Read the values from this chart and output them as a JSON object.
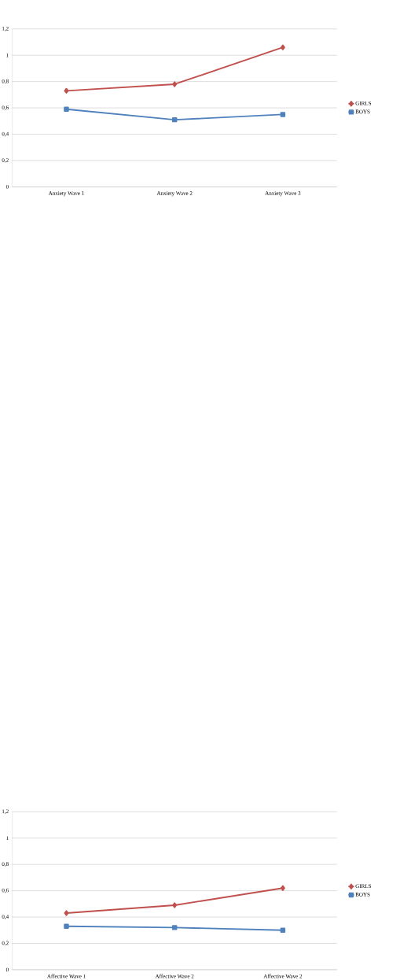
{
  "chart_data": [
    {
      "type": "line",
      "categories": [
        "Anxiety Wave 1",
        "Anxiety Wave 2",
        "Anxiety Wave 3"
      ],
      "series": [
        {
          "name": "GIRLS",
          "color": "#c0504d",
          "marker": "diamond",
          "values": [
            0.73,
            0.78,
            1.06
          ]
        },
        {
          "name": "BOYS",
          "color": "#4f81bd",
          "marker": "square",
          "values": [
            0.59,
            0.51,
            0.55
          ]
        }
      ],
      "ylim": [
        0,
        1.2
      ],
      "yticks": [
        0,
        {
          "value": 0.2,
          "label": "0,2"
        },
        {
          "value": 0.4,
          "label": "0,4"
        },
        {
          "value": 0.6,
          "label": "0,6"
        },
        {
          "value": 0.8,
          "label": "0,8"
        },
        1,
        {
          "value": 1.2,
          "label": "1,2"
        }
      ],
      "grid": "y",
      "legend": "right"
    },
    {
      "type": "line",
      "categories": [
        "Affective Wave 1",
        "Affective Wave 2",
        "Affective Wave 2"
      ],
      "series": [
        {
          "name": "GIRLS",
          "color": "#c0504d",
          "marker": "diamond",
          "values": [
            0.43,
            0.49,
            0.62
          ]
        },
        {
          "name": "BOYS",
          "color": "#4f81bd",
          "marker": "square",
          "values": [
            0.33,
            0.32,
            0.3
          ]
        }
      ],
      "ylim": [
        0,
        1.2
      ],
      "yticks": [
        0,
        {
          "value": 0.2,
          "label": "0,2"
        },
        {
          "value": 0.4,
          "label": "0,4"
        },
        {
          "value": 0.6,
          "label": "0,6"
        },
        {
          "value": 0.8,
          "label": "0,8"
        },
        1,
        {
          "value": 1.2,
          "label": "1,2"
        }
      ],
      "grid": "y",
      "legend": "right"
    }
  ]
}
